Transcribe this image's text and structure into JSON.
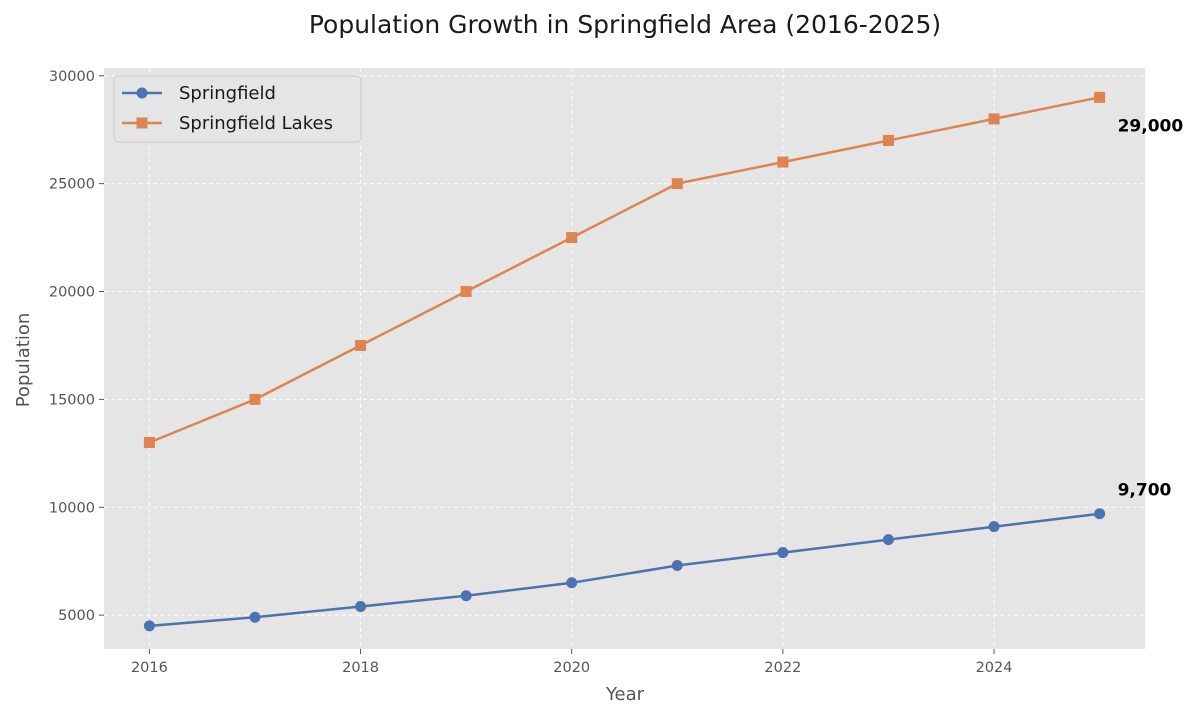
{
  "chart_data": {
    "type": "line",
    "title": "Population Growth in Springfield Area (2016-2025)",
    "xlabel": "Year",
    "ylabel": "Population",
    "x": [
      2016,
      2017,
      2018,
      2019,
      2020,
      2021,
      2022,
      2023,
      2024,
      2025
    ],
    "xlim": [
      2015.57,
      2025.43
    ],
    "ylim": [
      3430,
      30360
    ],
    "x_ticks": [
      "2016",
      "2018",
      "2020",
      "2022",
      "2024"
    ],
    "y_ticks": [
      "5000",
      "10000",
      "15000",
      "20000",
      "25000",
      "30000"
    ],
    "grid": true,
    "legend_position": "top-left",
    "series": [
      {
        "name": "Springfield",
        "marker": "circle",
        "color": "#4C72B0",
        "values": [
          4500,
          4900,
          5400,
          5900,
          6500,
          7300,
          7900,
          8500,
          9100,
          9700
        ],
        "end_label": "9,700"
      },
      {
        "name": "Springfield Lakes",
        "marker": "square",
        "color": "#DD8452",
        "values": [
          13000,
          15000,
          17500,
          20000,
          22500,
          25000,
          26000,
          27000,
          28000,
          29000
        ],
        "end_label": "29,000"
      }
    ],
    "colors": {
      "plot_background": "#E5E5E5",
      "grid": "#FFFFFF",
      "text": "#555555"
    }
  }
}
